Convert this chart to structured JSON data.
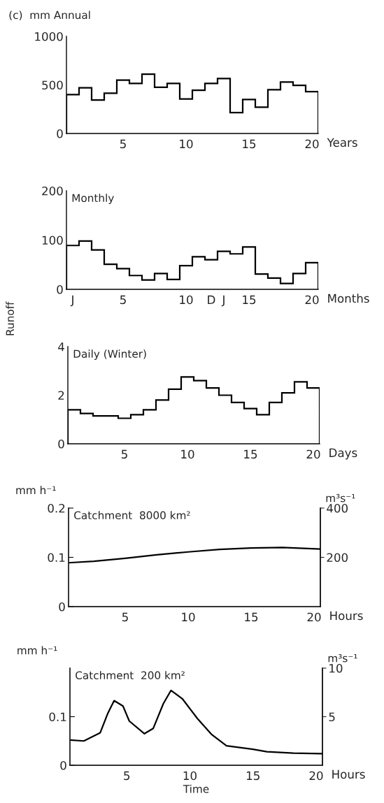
{
  "chart_data": [
    {
      "type": "histogram",
      "title": "(c)  mm Annual",
      "xlabel": "Years",
      "color": "#000000",
      "bins": [
        0.5,
        1.5,
        2.5,
        3.5,
        4.5,
        5.5,
        6.5,
        7.5,
        8.5,
        9.5,
        10.5,
        11.5,
        12.5,
        13.5,
        14.5,
        15.5,
        16.5,
        17.5,
        18.5,
        19.5,
        20.5
      ],
      "values": [
        400,
        470,
        345,
        415,
        550,
        515,
        610,
        475,
        515,
        355,
        445,
        515,
        565,
        215,
        350,
        270,
        450,
        530,
        495,
        430
      ],
      "xlim": [
        0.5,
        20.5
      ],
      "xticks": [
        5,
        10,
        15,
        20
      ],
      "ylim": [
        0,
        1000
      ],
      "yticks": [
        0,
        500,
        1000
      ]
    },
    {
      "type": "histogram",
      "xlabel": "Months",
      "ylabel": "Runoff",
      "annotations": [
        "Monthly"
      ],
      "color": "#000000",
      "bins": [
        0.5,
        1.5,
        2.5,
        3.5,
        4.5,
        5.5,
        6.5,
        7.5,
        8.5,
        9.5,
        10.5,
        11.5,
        12.5,
        13.5,
        14.5,
        15.5,
        16.5,
        17.5,
        18.5,
        19.5,
        20.5
      ],
      "values": [
        89,
        98,
        80,
        51,
        42,
        28,
        19,
        32,
        20,
        48,
        66,
        60,
        77,
        72,
        86,
        31,
        23,
        12,
        32,
        54
      ],
      "xlim": [
        0.5,
        20.5
      ],
      "xticks": [
        {
          "value": 1,
          "label": "J"
        },
        5,
        10,
        {
          "value": 12,
          "label": "D"
        },
        {
          "value": 13,
          "label": "J"
        },
        15,
        20
      ],
      "ylim": [
        0,
        200
      ],
      "yticks": [
        0,
        100,
        200
      ]
    },
    {
      "type": "histogram",
      "xlabel": "Days",
      "annotations": [
        "Daily (Winter)"
      ],
      "color": "#000000",
      "bins": [
        0.5,
        1.5,
        2.5,
        3.5,
        4.5,
        5.5,
        6.5,
        7.5,
        8.5,
        9.5,
        10.5,
        11.5,
        12.5,
        13.5,
        14.5,
        15.5,
        16.5,
        17.5,
        18.5,
        19.5,
        20.5
      ],
      "values": [
        1.4,
        1.25,
        1.15,
        1.15,
        1.05,
        1.2,
        1.4,
        1.8,
        2.25,
        2.75,
        2.6,
        2.3,
        2.0,
        1.7,
        1.45,
        1.2,
        1.7,
        2.1,
        2.55,
        2.3
      ],
      "xlim": [
        0.5,
        20.5
      ],
      "xticks": [
        5,
        10,
        15,
        20
      ],
      "ylim": [
        0,
        4
      ],
      "yticks": [
        0,
        2,
        4
      ]
    },
    {
      "type": "line",
      "xlabel": "Hours",
      "ylabel": "mm h⁻¹",
      "y2label": "m³s⁻¹",
      "annotations": [
        "Catchment  8000 km²"
      ],
      "color": "#000000",
      "x": [
        0.5,
        2.5,
        5,
        7.5,
        10,
        12.5,
        15,
        17.5,
        20.5
      ],
      "values": [
        0.089,
        0.092,
        0.098,
        0.105,
        0.111,
        0.116,
        0.119,
        0.12,
        0.117
      ],
      "xlim": [
        0.5,
        20.5
      ],
      "xticks": [
        5,
        10,
        15,
        20
      ],
      "ylim": [
        0,
        0.2
      ],
      "yticks": [
        0,
        0.1,
        0.2
      ],
      "y2lim": [
        0,
        400
      ],
      "y2ticks": [
        200,
        400
      ]
    },
    {
      "type": "line",
      "xlabel": "Hours",
      "ylabel": "mm h⁻¹",
      "y2label": "m³s⁻¹",
      "annotations": [
        "Catchment  200 km²",
        "Time"
      ],
      "color": "#000000",
      "x": [
        0.5,
        1.6,
        2.9,
        3.5,
        4.0,
        4.7,
        5.2,
        6.4,
        7.1,
        7.9,
        8.5,
        9.4,
        10.6,
        11.7,
        12.9,
        15.0,
        16.1,
        18.2,
        20.3,
        20.5
      ],
      "values": [
        0.052,
        0.05,
        0.067,
        0.107,
        0.133,
        0.122,
        0.091,
        0.065,
        0.076,
        0.127,
        0.154,
        0.137,
        0.096,
        0.064,
        0.04,
        0.033,
        0.028,
        0.025,
        0.024,
        0.024
      ],
      "xlim": [
        0.5,
        20.5
      ],
      "xticks": [
        5,
        10,
        15,
        20
      ],
      "ylim": [
        0,
        0.2
      ],
      "yticks": [
        0,
        0.1
      ],
      "y2lim": [
        0,
        10
      ],
      "y2ticks": [
        5,
        10
      ]
    }
  ]
}
